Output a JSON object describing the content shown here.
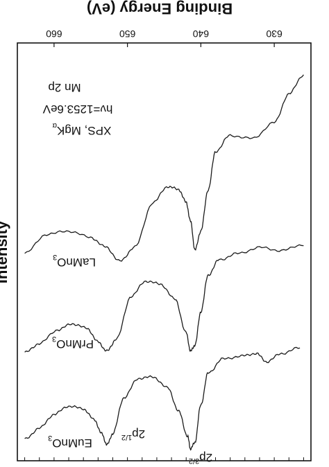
{
  "chart_data": {
    "type": "line",
    "orientation": "rotated-180",
    "xaxis": {
      "label": "Binding Energy (eV)",
      "ticks": [
        660,
        650,
        640,
        630
      ],
      "range": [
        665,
        625
      ],
      "position": "top"
    },
    "yaxis": {
      "label": "Intensity",
      "position": "left",
      "tick_labels": false
    },
    "annotation": {
      "line1": "Mn 2p",
      "line2": "hν=1253.6eV",
      "line3_main": "XPS, MgK",
      "line3_sub": "α"
    },
    "peaks": [
      {
        "main": "2p",
        "sup": "1/2",
        "x": 652.8
      },
      {
        "main": "2p",
        "sup": "3/2",
        "x": 641.4
      }
    ],
    "series": [
      {
        "name_main": "LaMnO",
        "name_sub": "3",
        "x": [
          664.0,
          661.0,
          658.0,
          655.0,
          653.0,
          651.0,
          649.0,
          646.5,
          644.5,
          643.0,
          642.0,
          641.4,
          640.8,
          640.0,
          639.0,
          638.0,
          636.0,
          633.0,
          630.0,
          628.0,
          626.0
        ],
        "y": [
          0.08,
          0.2,
          0.22,
          0.18,
          0.12,
          0.03,
          0.12,
          0.4,
          0.5,
          0.48,
          0.4,
          0.28,
          0.1,
          0.22,
          0.48,
          0.72,
          0.82,
          0.8,
          0.9,
          1.08,
          1.2
        ]
      },
      {
        "name_main": "PrMnO",
        "name_sub": "3",
        "x": [
          664.0,
          662.0,
          659.5,
          657.5,
          655.5,
          654.0,
          652.8,
          651.5,
          649.5,
          647.5,
          645.5,
          643.5,
          642.0,
          641.4,
          640.8,
          640.0,
          639.0,
          637.5,
          635.0,
          632.0,
          629.0,
          626.0
        ],
        "y": [
          0.05,
          0.11,
          0.2,
          0.24,
          0.21,
          0.12,
          0.06,
          0.14,
          0.42,
          0.52,
          0.5,
          0.4,
          0.18,
          0.06,
          0.1,
          0.32,
          0.56,
          0.66,
          0.7,
          0.74,
          0.72,
          0.76
        ]
      },
      {
        "name_main": "EuMnO",
        "name_sub": "3",
        "x": [
          664.0,
          662.0,
          660.0,
          658.0,
          656.0,
          654.5,
          653.5,
          652.8,
          652.0,
          650.5,
          648.5,
          646.5,
          644.5,
          643.0,
          641.8,
          641.4,
          640.8,
          640.0,
          639.0,
          637.0,
          634.5,
          632.5,
          631.0,
          629.0,
          626.5
        ],
        "y": [
          0.1,
          0.18,
          0.28,
          0.34,
          0.32,
          0.24,
          0.14,
          0.06,
          0.14,
          0.4,
          0.54,
          0.55,
          0.47,
          0.3,
          0.12,
          0.03,
          0.08,
          0.35,
          0.58,
          0.68,
          0.7,
          0.72,
          0.66,
          0.72,
          0.76
        ]
      }
    ]
  }
}
